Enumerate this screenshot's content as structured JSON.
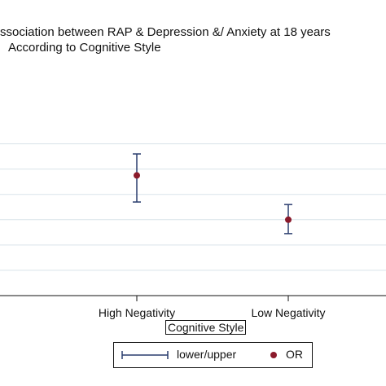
{
  "chart_data": {
    "type": "scatter",
    "title": "ssociation between RAP & Depression &/ Anxiety at 18 years",
    "subtitle": "According to Cognitive Style",
    "xlabel": "Cognitive Style",
    "categories": [
      "High Negativity",
      "Low Negativity"
    ],
    "series": [
      {
        "name": "OR",
        "values": [
          1.95,
          1.6
        ],
        "lower": [
          1.74,
          1.49
        ],
        "upper": [
          2.12,
          1.72
        ],
        "color": "#8b1a2b"
      }
    ],
    "range_legend_label": "lower/upper",
    "ylim": [
      1.0,
      2.5
    ],
    "ygrid_at": [
      1.2,
      1.4,
      1.6,
      1.8,
      2.0,
      2.2
    ],
    "grid": true,
    "legend_position": "bottom",
    "colors": {
      "range": "#2a3d6e",
      "point": "#8b1a2b",
      "grid": "#d9e3ea",
      "axis": "#111111"
    }
  }
}
